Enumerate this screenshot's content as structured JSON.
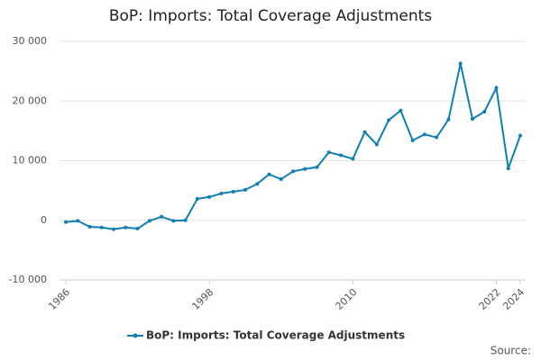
{
  "chart_data": {
    "type": "line",
    "title": "BoP: Imports: Total Coverage Adjustments",
    "x": [
      1986,
      1987,
      1988,
      1989,
      1990,
      1991,
      1992,
      1993,
      1994,
      1995,
      1996,
      1997,
      1998,
      1999,
      2000,
      2001,
      2002,
      2003,
      2004,
      2005,
      2006,
      2007,
      2008,
      2009,
      2010,
      2011,
      2012,
      2013,
      2014,
      2015,
      2016,
      2017,
      2018,
      2019,
      2020,
      2021,
      2022,
      2023,
      2024
    ],
    "series": [
      {
        "name": "BoP: Imports: Total Coverage Adjustments",
        "color": "#0f7fb4",
        "values": [
          -300,
          -100,
          -1100,
          -1200,
          -1500,
          -1200,
          -1400,
          -100,
          600,
          -100,
          0,
          3600,
          3900,
          4500,
          4800,
          5100,
          6100,
          7700,
          6900,
          8200,
          8600,
          8900,
          11400,
          10900,
          10300,
          14800,
          12700,
          16800,
          18400,
          13400,
          14400,
          13900,
          16900,
          26300,
          17000,
          18200,
          22200,
          8700,
          14200
        ]
      }
    ],
    "xlim": [
      1986,
      2024
    ],
    "xticks": [
      1986,
      1998,
      2010,
      2022,
      2024
    ],
    "ylim": [
      -10000,
      30000
    ],
    "yticks": [
      {
        "value": -10000,
        "label": "-10 000"
      },
      0,
      {
        "value": 10000,
        "label": "10 000"
      },
      {
        "value": 20000,
        "label": "20 000"
      },
      {
        "value": 30000,
        "label": "30 000"
      }
    ],
    "grid": true,
    "source": "Source:"
  }
}
